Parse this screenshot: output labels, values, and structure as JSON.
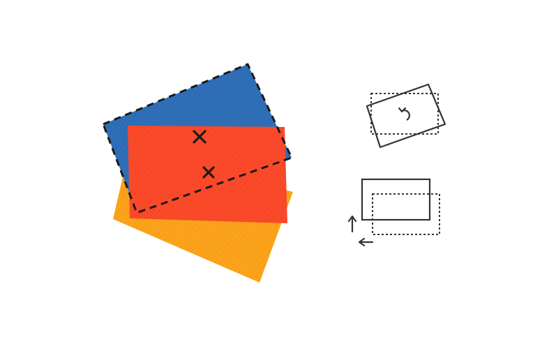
{
  "diagram": {
    "background": "#ffffff",
    "colors": {
      "blue": "#2f6fb8",
      "red": "#fa4a2a",
      "orange": "#fba31a",
      "ink": "#1a1a1a",
      "outline_gray": "#333333"
    },
    "shapes": [
      {
        "role": "blue-rectangle",
        "fill": "blue",
        "outline": "dashed"
      },
      {
        "role": "orange-rectangle",
        "fill": "orange",
        "outline": "none"
      },
      {
        "role": "red-rectangle",
        "fill": "red",
        "outline": "none"
      }
    ],
    "markers": [
      {
        "role": "center-marker",
        "glyph": "x"
      },
      {
        "role": "center-marker",
        "glyph": "x"
      }
    ],
    "icons": [
      {
        "role": "rotate-transform-icon",
        "meaning": "rotation"
      },
      {
        "role": "translate-transform-icon",
        "meaning": "translation"
      }
    ]
  }
}
